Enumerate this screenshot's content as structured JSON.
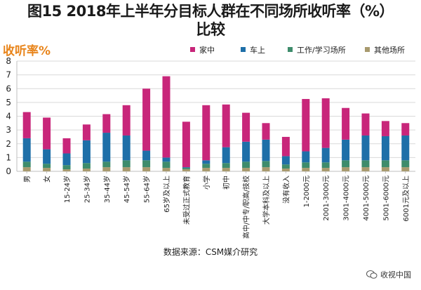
{
  "title_line1": "图15 2018年上半年分目标人群在不同场所收听率（%）",
  "title_line2": "比较",
  "source": "数据来源：CSM媒介研究",
  "brand": "收视中国",
  "chart_data": {
    "type": "bar",
    "stacked": true,
    "ylabel": "收听率%",
    "ylim": [
      0,
      8
    ],
    "yticks": [
      0,
      1,
      2,
      3,
      4,
      5,
      6,
      7,
      8
    ],
    "legend_position": "top-right",
    "categories": [
      "男",
      "女",
      "15-24岁",
      "25-34岁",
      "35-44岁",
      "45-54岁",
      "55-64岁",
      "65岁及以上",
      "未受过正式教育",
      "小学",
      "初中",
      "高中/中专/职高/技校",
      "大学本科及以上",
      "没有收入",
      "1-2000元",
      "2001-3000元",
      "3001-4000元",
      "4001-5000元",
      "5001-6000元",
      "6001元及以上"
    ],
    "series": [
      {
        "name": "其他场所",
        "color": "#a89a6e",
        "values": [
          0.3,
          0.25,
          0.15,
          0.2,
          0.3,
          0.3,
          0.3,
          0.25,
          0.15,
          0.25,
          0.25,
          0.25,
          0.3,
          0.2,
          0.25,
          0.25,
          0.3,
          0.3,
          0.3,
          0.3
        ]
      },
      {
        "name": "工作/学习场所",
        "color": "#3e8c6c",
        "values": [
          0.4,
          0.3,
          0.3,
          0.4,
          0.4,
          0.5,
          0.5,
          0.45,
          0.1,
          0.3,
          0.35,
          0.45,
          0.45,
          0.3,
          0.4,
          0.4,
          0.5,
          0.5,
          0.5,
          0.5
        ]
      },
      {
        "name": "车上",
        "color": "#1e6fa8",
        "values": [
          1.7,
          1.05,
          0.85,
          1.65,
          2.1,
          1.8,
          0.7,
          0.3,
          0.05,
          0.25,
          1.15,
          1.45,
          1.55,
          0.6,
          0.8,
          1.05,
          1.5,
          1.8,
          1.75,
          1.8
        ]
      },
      {
        "name": "家中",
        "color": "#c8267a",
        "values": [
          1.9,
          2.3,
          1.1,
          1.15,
          1.35,
          2.2,
          4.5,
          5.9,
          3.3,
          4.0,
          3.1,
          2.1,
          1.2,
          1.4,
          3.8,
          3.6,
          2.3,
          1.6,
          1.1,
          0.9
        ]
      }
    ]
  }
}
